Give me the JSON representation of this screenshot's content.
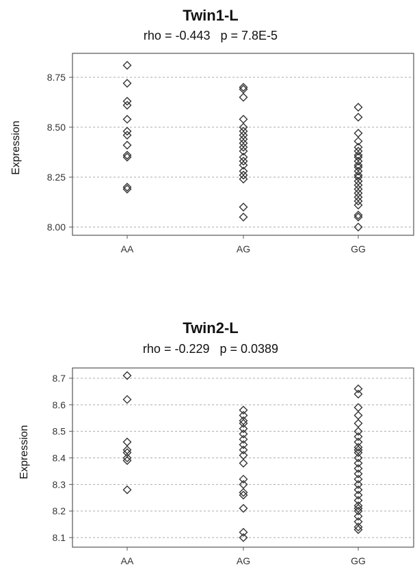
{
  "chart_data": [
    {
      "type": "scatter",
      "title": "Twin1-L",
      "subtitle": "rho = -0.443   p = 7.8E-5",
      "xlabel": "",
      "ylabel": "Expression",
      "categories": [
        "AA",
        "AG",
        "GG"
      ],
      "yticks": [
        "8.75",
        "8.50",
        "8.25",
        "8.00"
      ],
      "ylim": [
        7.98,
        8.84
      ],
      "grid": true,
      "legend": "none",
      "series": [
        {
          "values": [
            {
              "x": "AA",
              "y": 8.81
            },
            {
              "x": "AA",
              "y": 8.72
            },
            {
              "x": "AA",
              "y": 8.63
            },
            {
              "x": "AA",
              "y": 8.61
            },
            {
              "x": "AA",
              "y": 8.54
            },
            {
              "x": "AA",
              "y": 8.48
            },
            {
              "x": "AA",
              "y": 8.46
            },
            {
              "x": "AA",
              "y": 8.41
            },
            {
              "x": "AA",
              "y": 8.36
            },
            {
              "x": "AA",
              "y": 8.35
            },
            {
              "x": "AA",
              "y": 8.2
            },
            {
              "x": "AA",
              "y": 8.19
            },
            {
              "x": "AG",
              "y": 8.7
            },
            {
              "x": "AG",
              "y": 8.69
            },
            {
              "x": "AG",
              "y": 8.65
            },
            {
              "x": "AG",
              "y": 8.54
            },
            {
              "x": "AG",
              "y": 8.5
            },
            {
              "x": "AG",
              "y": 8.48
            },
            {
              "x": "AG",
              "y": 8.46
            },
            {
              "x": "AG",
              "y": 8.44
            },
            {
              "x": "AG",
              "y": 8.42
            },
            {
              "x": "AG",
              "y": 8.4
            },
            {
              "x": "AG",
              "y": 8.38
            },
            {
              "x": "AG",
              "y": 8.35
            },
            {
              "x": "AG",
              "y": 8.33
            },
            {
              "x": "AG",
              "y": 8.31
            },
            {
              "x": "AG",
              "y": 8.28
            },
            {
              "x": "AG",
              "y": 8.26
            },
            {
              "x": "AG",
              "y": 8.24
            },
            {
              "x": "AG",
              "y": 8.1
            },
            {
              "x": "AG",
              "y": 8.05
            },
            {
              "x": "GG",
              "y": 8.6
            },
            {
              "x": "GG",
              "y": 8.55
            },
            {
              "x": "GG",
              "y": 8.47
            },
            {
              "x": "GG",
              "y": 8.43
            },
            {
              "x": "GG",
              "y": 8.4
            },
            {
              "x": "GG",
              "y": 8.38
            },
            {
              "x": "GG",
              "y": 8.36
            },
            {
              "x": "GG",
              "y": 8.35
            },
            {
              "x": "GG",
              "y": 8.33
            },
            {
              "x": "GG",
              "y": 8.31
            },
            {
              "x": "GG",
              "y": 8.3
            },
            {
              "x": "GG",
              "y": 8.28
            },
            {
              "x": "GG",
              "y": 8.26
            },
            {
              "x": "GG",
              "y": 8.25
            },
            {
              "x": "GG",
              "y": 8.23
            },
            {
              "x": "GG",
              "y": 8.21
            },
            {
              "x": "GG",
              "y": 8.19
            },
            {
              "x": "GG",
              "y": 8.17
            },
            {
              "x": "GG",
              "y": 8.15
            },
            {
              "x": "GG",
              "y": 8.13
            },
            {
              "x": "GG",
              "y": 8.11
            },
            {
              "x": "GG",
              "y": 8.06
            },
            {
              "x": "GG",
              "y": 8.05
            },
            {
              "x": "GG",
              "y": 8.0
            }
          ]
        }
      ]
    },
    {
      "type": "scatter",
      "title": "Twin2-L",
      "subtitle": "rho = -0.229   p = 0.0389",
      "xlabel": "",
      "ylabel": "Expression",
      "categories": [
        "AA",
        "AG",
        "GG"
      ],
      "yticks": [
        "8.7",
        "8.6",
        "8.5",
        "8.4",
        "8.3",
        "8.2",
        "8.1"
      ],
      "ylim": [
        8.08,
        8.74
      ],
      "grid": true,
      "legend": "none",
      "series": [
        {
          "values": [
            {
              "x": "AA",
              "y": 8.71
            },
            {
              "x": "AA",
              "y": 8.62
            },
            {
              "x": "AA",
              "y": 8.46
            },
            {
              "x": "AA",
              "y": 8.43
            },
            {
              "x": "AA",
              "y": 8.42
            },
            {
              "x": "AA",
              "y": 8.4
            },
            {
              "x": "AA",
              "y": 8.39
            },
            {
              "x": "AA",
              "y": 8.28
            },
            {
              "x": "AG",
              "y": 8.58
            },
            {
              "x": "AG",
              "y": 8.56
            },
            {
              "x": "AG",
              "y": 8.54
            },
            {
              "x": "AG",
              "y": 8.53
            },
            {
              "x": "AG",
              "y": 8.51
            },
            {
              "x": "AG",
              "y": 8.49
            },
            {
              "x": "AG",
              "y": 8.47
            },
            {
              "x": "AG",
              "y": 8.45
            },
            {
              "x": "AG",
              "y": 8.43
            },
            {
              "x": "AG",
              "y": 8.41
            },
            {
              "x": "AG",
              "y": 8.38
            },
            {
              "x": "AG",
              "y": 8.32
            },
            {
              "x": "AG",
              "y": 8.3
            },
            {
              "x": "AG",
              "y": 8.27
            },
            {
              "x": "AG",
              "y": 8.26
            },
            {
              "x": "AG",
              "y": 8.21
            },
            {
              "x": "AG",
              "y": 8.12
            },
            {
              "x": "AG",
              "y": 8.1
            },
            {
              "x": "GG",
              "y": 8.66
            },
            {
              "x": "GG",
              "y": 8.64
            },
            {
              "x": "GG",
              "y": 8.59
            },
            {
              "x": "GG",
              "y": 8.56
            },
            {
              "x": "GG",
              "y": 8.53
            },
            {
              "x": "GG",
              "y": 8.5
            },
            {
              "x": "GG",
              "y": 8.48
            },
            {
              "x": "GG",
              "y": 8.46
            },
            {
              "x": "GG",
              "y": 8.44
            },
            {
              "x": "GG",
              "y": 8.43
            },
            {
              "x": "GG",
              "y": 8.42
            },
            {
              "x": "GG",
              "y": 8.4
            },
            {
              "x": "GG",
              "y": 8.38
            },
            {
              "x": "GG",
              "y": 8.36
            },
            {
              "x": "GG",
              "y": 8.34
            },
            {
              "x": "GG",
              "y": 8.32
            },
            {
              "x": "GG",
              "y": 8.3
            },
            {
              "x": "GG",
              "y": 8.28
            },
            {
              "x": "GG",
              "y": 8.26
            },
            {
              "x": "GG",
              "y": 8.24
            },
            {
              "x": "GG",
              "y": 8.22
            },
            {
              "x": "GG",
              "y": 8.21
            },
            {
              "x": "GG",
              "y": 8.2
            },
            {
              "x": "GG",
              "y": 8.18
            },
            {
              "x": "GG",
              "y": 8.16
            },
            {
              "x": "GG",
              "y": 8.14
            },
            {
              "x": "GG",
              "y": 8.13
            }
          ]
        }
      ]
    }
  ],
  "style": {
    "marker_color": "#333333",
    "grid_color": "#aaaaaa",
    "axis_color": "#555555",
    "marker_shape": "diamond"
  }
}
